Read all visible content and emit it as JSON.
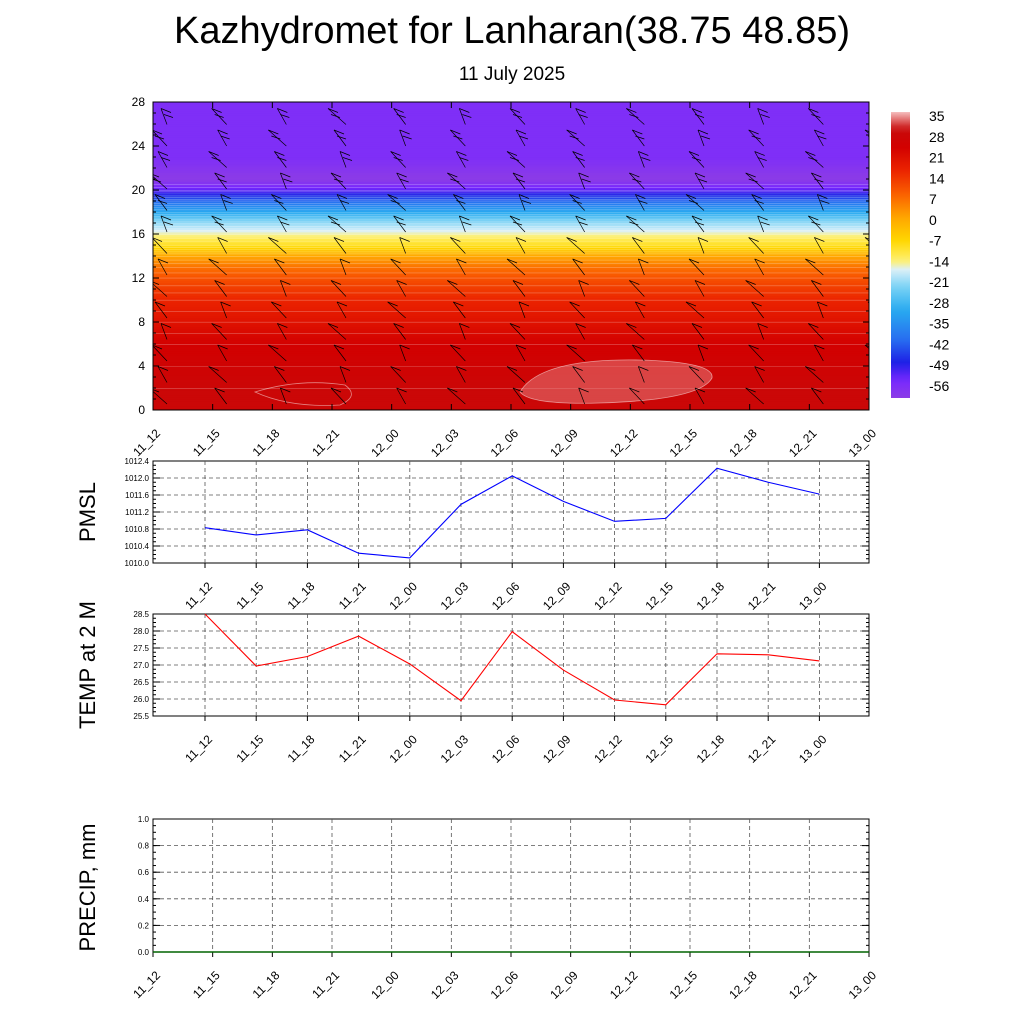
{
  "title": "Kazhydromet for Lanharan(38.75 48.85)",
  "subtitle": "11 July 2025",
  "chart_data": [
    {
      "type": "heatmap",
      "name": "upper-air cross-section",
      "xlabels": [
        "11_12",
        "11_15",
        "11_18",
        "11_21",
        "12_00",
        "12_03",
        "12_06",
        "12_09",
        "12_12",
        "12_15",
        "12_18",
        "12_21",
        "13_00"
      ],
      "yticks": [
        0,
        4,
        8,
        12,
        16,
        20,
        24,
        28
      ],
      "ylim": [
        0,
        28
      ],
      "colorbar_labels": [
        "35",
        "28",
        "21",
        "14",
        "7",
        "0",
        "-7",
        "-14",
        "-21",
        "-28",
        "-35",
        "-42",
        "-49",
        "-56"
      ],
      "colorbar_range": [
        -60,
        38
      ],
      "rows_y": [
        0,
        2,
        4,
        6,
        8,
        10,
        11,
        12,
        13,
        14,
        15,
        16,
        17,
        18,
        19,
        20,
        21,
        22,
        23,
        24,
        28
      ],
      "rows_value": [
        30,
        30,
        28,
        26,
        22,
        18,
        15,
        12,
        8,
        2,
        -8,
        -14,
        -20,
        -30,
        -40,
        -52,
        -60,
        -58,
        -56,
        -56,
        -56
      ],
      "wind_barbs": true,
      "colors": {
        "warm": "#d40000",
        "cold": "#8a2be2"
      }
    },
    {
      "type": "line",
      "ylabel": "PMSL",
      "categories": [
        "11_12",
        "11_15",
        "11_18",
        "11_21",
        "12_00",
        "12_03",
        "12_06",
        "12_09",
        "12_12",
        "12_15",
        "12_18",
        "12_21",
        "13_00"
      ],
      "yticks": [
        "1010.0",
        "1010.4",
        "1010.8",
        "1011.2",
        "1011.6",
        "1012.0",
        "1012.4"
      ],
      "ylim": [
        1010.0,
        1012.4
      ],
      "series": [
        {
          "values": [
            1010.83,
            1010.66,
            1010.78,
            1010.23,
            1010.12,
            1011.38,
            1012.05,
            1011.45,
            1010.98,
            1011.05,
            1012.23,
            1011.9,
            1011.62
          ],
          "color": "#0000ff"
        }
      ],
      "grid": true
    },
    {
      "type": "line",
      "ylabel": "TEMP at 2 M",
      "categories": [
        "11_12",
        "11_15",
        "11_18",
        "11_21",
        "12_00",
        "12_03",
        "12_06",
        "12_09",
        "12_12",
        "12_15",
        "12_18",
        "12_21",
        "13_00"
      ],
      "yticks": [
        "25.5",
        "26.0",
        "26.5",
        "27.0",
        "27.5",
        "28.0",
        "28.5"
      ],
      "ylim": [
        25.5,
        28.5
      ],
      "series": [
        {
          "values": [
            28.5,
            26.97,
            27.25,
            27.85,
            27.03,
            25.95,
            27.98,
            26.85,
            25.97,
            25.83,
            27.33,
            27.3,
            27.12
          ],
          "color": "#ff0000"
        }
      ],
      "grid": true
    },
    {
      "type": "line",
      "ylabel": "PRECIP, mm",
      "categories": [
        "11_12",
        "11_15",
        "11_18",
        "11_21",
        "12_00",
        "12_03",
        "12_06",
        "12_09",
        "12_12",
        "12_15",
        "12_18",
        "12_21",
        "13_00"
      ],
      "yticks": [
        "0.0",
        "0.2",
        "0.4",
        "0.6",
        "0.8",
        "1.0"
      ],
      "ylim": [
        0.0,
        1.0
      ],
      "series": [
        {
          "values": [
            0,
            0,
            0,
            0,
            0,
            0,
            0,
            0,
            0,
            0,
            0,
            0,
            0
          ],
          "color": "#006400"
        }
      ],
      "grid": true
    }
  ]
}
